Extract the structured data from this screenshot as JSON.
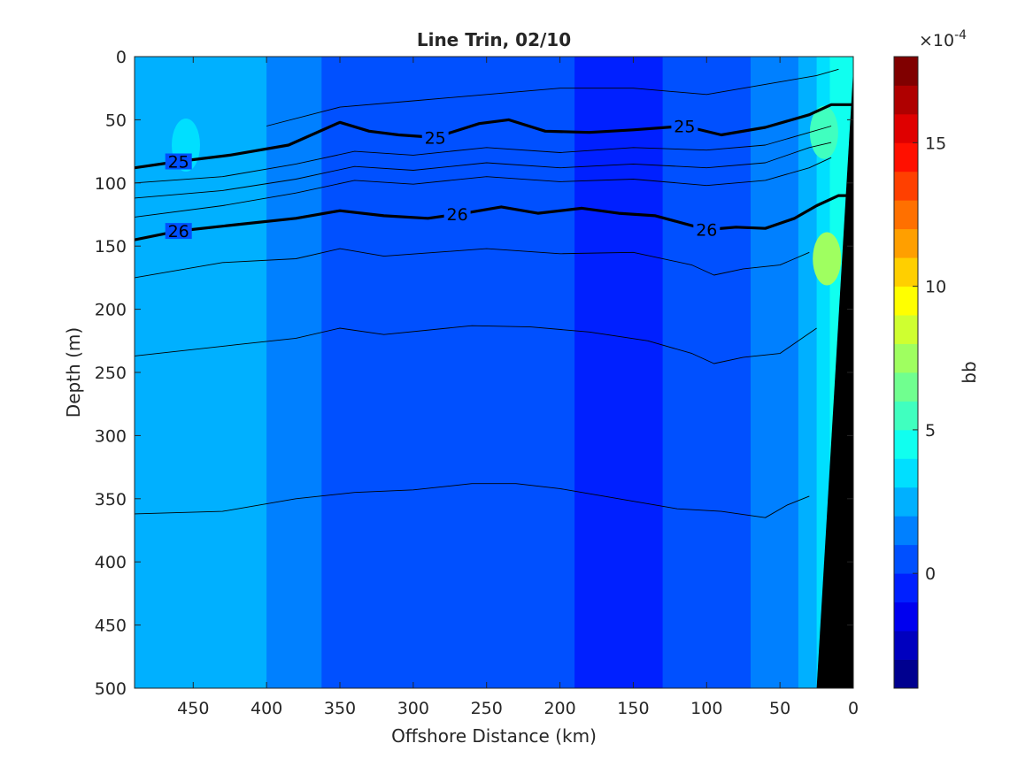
{
  "chart_data": {
    "type": "heatmap",
    "title": "Line Trin, 02/10",
    "xlabel": "Offshore Distance (km)",
    "ylabel": "Depth (m)",
    "xlim": [
      490,
      0
    ],
    "ylim": [
      0,
      500
    ],
    "x_ticks": [
      450,
      400,
      350,
      300,
      250,
      200,
      150,
      100,
      50,
      0
    ],
    "y_ticks": [
      0,
      50,
      100,
      150,
      200,
      250,
      300,
      350,
      400,
      450,
      500
    ],
    "colorbar": {
      "label": "bb",
      "exponent_label": "×10",
      "exponent_power": "-4",
      "range": [
        -4,
        18
      ],
      "ticks": [
        0,
        5,
        10,
        15
      ],
      "palette": [
        "#00008f",
        "#0000bf",
        "#0000ef",
        "#0020ff",
        "#0050ff",
        "#0080ff",
        "#00b0ff",
        "#00dfff",
        "#10ffef",
        "#40ffbf",
        "#70ff8f",
        "#9fff60",
        "#cfff30",
        "#ffff00",
        "#ffcf00",
        "#ff9f00",
        "#ff7000",
        "#ff4000",
        "#ff1000",
        "#df0000",
        "#af0000",
        "#800000"
      ]
    },
    "x": [
      490,
      470,
      450,
      430,
      410,
      390,
      370,
      355,
      340,
      320,
      300,
      280,
      260,
      240,
      220,
      200,
      180,
      160,
      140,
      120,
      100,
      80,
      60,
      45,
      30,
      20,
      12,
      5,
      0
    ],
    "columns": [
      {
        "x": 490,
        "bb": 2.0
      },
      {
        "x": 470,
        "bb": 2.2
      },
      {
        "x": 450,
        "bb": 2.4
      },
      {
        "x": 430,
        "bb": 2.3
      },
      {
        "x": 410,
        "bb": 2.1
      },
      {
        "x": 390,
        "bb": 1.6
      },
      {
        "x": 370,
        "bb": 1.0
      },
      {
        "x": 355,
        "bb": 0.6
      },
      {
        "x": 340,
        "bb": 0.4
      },
      {
        "x": 320,
        "bb": 0.4
      },
      {
        "x": 300,
        "bb": 0.5
      },
      {
        "x": 280,
        "bb": 0.6
      },
      {
        "x": 260,
        "bb": 0.5
      },
      {
        "x": 240,
        "bb": 0.4
      },
      {
        "x": 220,
        "bb": 0.5
      },
      {
        "x": 200,
        "bb": 0.3
      },
      {
        "x": 180,
        "bb": -0.2
      },
      {
        "x": 160,
        "bb": -0.6
      },
      {
        "x": 140,
        "bb": -0.4
      },
      {
        "x": 120,
        "bb": 0.0
      },
      {
        "x": 100,
        "bb": 0.4
      },
      {
        "x": 80,
        "bb": 0.8
      },
      {
        "x": 60,
        "bb": 1.3
      },
      {
        "x": 45,
        "bb": 1.8
      },
      {
        "x": 30,
        "bb": 2.6
      },
      {
        "x": 20,
        "bb": 3.5
      },
      {
        "x": 12,
        "bb": 4.5
      }
    ],
    "highlights": [
      {
        "x": 455,
        "depth": 70,
        "bb": 3.5
      },
      {
        "x": 18,
        "depth": 160,
        "bb": 7.0
      },
      {
        "x": 20,
        "depth": 60,
        "bb": 5.5
      }
    ],
    "isopycnals": [
      {
        "level": "",
        "bold": false,
        "x": [
          400,
          350,
          300,
          250,
          200,
          150,
          100,
          50,
          25,
          10
        ],
        "depth": [
          55,
          40,
          35,
          30,
          25,
          25,
          30,
          20,
          15,
          10
        ]
      },
      {
        "level": "25",
        "bold": true,
        "labels_at": [
          460,
          285,
          115
        ],
        "x": [
          490,
          460,
          425,
          385,
          350,
          330,
          310,
          285,
          255,
          235,
          210,
          180,
          150,
          115,
          90,
          60,
          30,
          15,
          0
        ],
        "depth": [
          88,
          83,
          78,
          70,
          52,
          59,
          62,
          64,
          53,
          50,
          59,
          60,
          58,
          55,
          62,
          56,
          46,
          38,
          38
        ]
      },
      {
        "level": "",
        "bold": false,
        "x": [
          490,
          430,
          380,
          340,
          300,
          250,
          200,
          150,
          100,
          60,
          30,
          15
        ],
        "depth": [
          100,
          95,
          85,
          75,
          78,
          72,
          76,
          72,
          74,
          70,
          60,
          55
        ]
      },
      {
        "level": "",
        "bold": false,
        "x": [
          490,
          430,
          380,
          340,
          300,
          250,
          200,
          150,
          100,
          60,
          30,
          15
        ],
        "depth": [
          112,
          106,
          97,
          87,
          90,
          84,
          88,
          85,
          88,
          84,
          72,
          68
        ]
      },
      {
        "level": "",
        "bold": false,
        "x": [
          490,
          430,
          380,
          340,
          300,
          250,
          200,
          150,
          100,
          60,
          30,
          15
        ],
        "depth": [
          127,
          118,
          108,
          98,
          101,
          95,
          99,
          97,
          102,
          98,
          88,
          80
        ]
      },
      {
        "level": "26",
        "bold": true,
        "labels_at": [
          460,
          270,
          100
        ],
        "x": [
          490,
          460,
          420,
          380,
          350,
          320,
          290,
          265,
          240,
          215,
          185,
          160,
          135,
          100,
          80,
          60,
          40,
          25,
          10,
          0
        ],
        "depth": [
          145,
          138,
          133,
          128,
          122,
          126,
          128,
          124,
          119,
          124,
          120,
          124,
          126,
          137,
          135,
          136,
          128,
          118,
          110,
          110
        ]
      },
      {
        "level": "",
        "bold": false,
        "x": [
          490,
          430,
          380,
          350,
          320,
          250,
          200,
          150,
          110,
          95,
          75,
          50,
          30
        ],
        "depth": [
          175,
          163,
          160,
          152,
          158,
          152,
          156,
          155,
          165,
          173,
          168,
          165,
          155
        ]
      },
      {
        "level": "",
        "bold": false,
        "x": [
          490,
          420,
          380,
          350,
          320,
          260,
          220,
          180,
          140,
          110,
          95,
          75,
          50,
          25
        ],
        "depth": [
          237,
          228,
          223,
          215,
          220,
          213,
          214,
          218,
          225,
          235,
          243,
          238,
          235,
          215
        ]
      },
      {
        "level": "",
        "bold": false,
        "x": [
          490,
          430,
          380,
          340,
          300,
          260,
          230,
          200,
          160,
          120,
          90,
          60,
          45,
          30
        ],
        "depth": [
          362,
          360,
          350,
          345,
          343,
          338,
          338,
          342,
          350,
          358,
          360,
          365,
          355,
          348
        ]
      }
    ],
    "bathymetry": {
      "color": "#000000",
      "x": [
        25,
        0,
        0
      ],
      "depth": [
        500,
        10,
        500
      ]
    }
  }
}
